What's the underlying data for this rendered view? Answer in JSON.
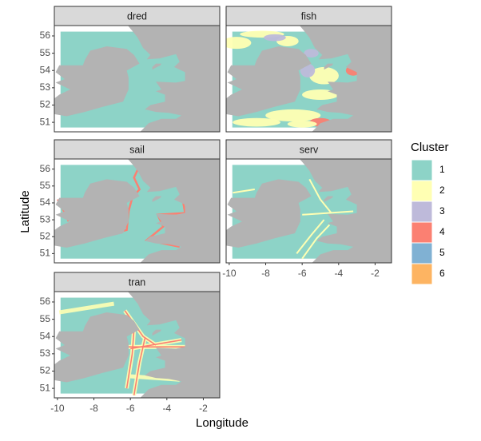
{
  "chart_data": {
    "type": "map",
    "x_label": "Longitude",
    "y_label": "Latitude",
    "xlim": [
      -10.17,
      -1.1
    ],
    "ylim": [
      50.45,
      56.6
    ],
    "xticks": [
      -10,
      -8,
      -6,
      -4,
      -2
    ],
    "yticks": [
      51,
      52,
      53,
      54,
      55,
      56
    ],
    "panels": [
      {
        "title": "dred"
      },
      {
        "title": "fish"
      },
      {
        "title": "sail"
      },
      {
        "title": "serv"
      },
      {
        "title": "tran"
      }
    ],
    "legend": {
      "title": "Cluster",
      "items": [
        {
          "label": "1",
          "color": "#8dd3c7"
        },
        {
          "label": "2",
          "color": "#ffffb3"
        },
        {
          "label": "3",
          "color": "#bebada"
        },
        {
          "label": "4",
          "color": "#fb8072"
        },
        {
          "label": "5",
          "color": "#80b1d3"
        },
        {
          "label": "6",
          "color": "#fdb462"
        }
      ]
    }
  }
}
